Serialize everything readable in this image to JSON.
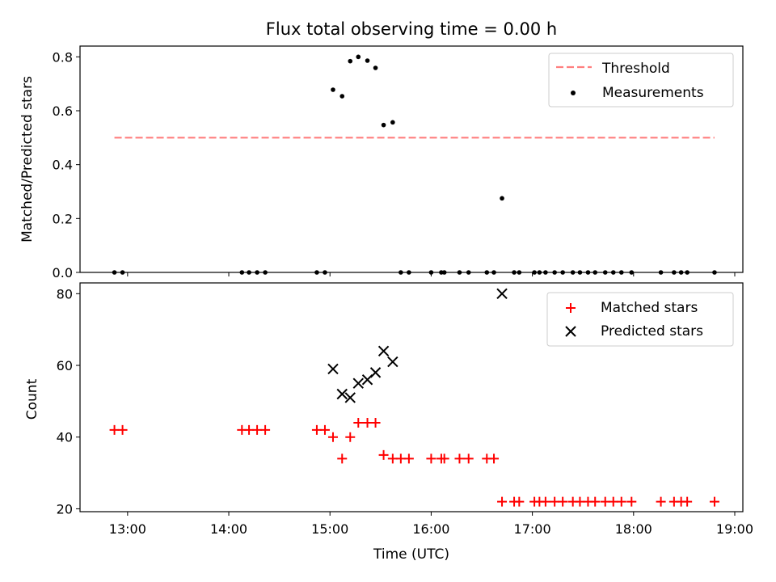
{
  "chart_data": [
    {
      "type": "scatter",
      "title": "Flux total observing time = 0.00 h",
      "xlabel": "",
      "ylabel": "Matched/Predicted stars",
      "xlim": [
        12.53,
        19.08
      ],
      "ylim": [
        0.0,
        0.84
      ],
      "yticks": [
        0.0,
        0.2,
        0.4,
        0.6,
        0.8
      ],
      "ytick_labels": [
        "0.0",
        "0.2",
        "0.4",
        "0.6",
        "0.8"
      ],
      "legend_position": "top-right",
      "threshold": {
        "name": "Threshold",
        "value": 0.5,
        "x_start": 12.87,
        "x_end": 18.8,
        "color": "#ff7f7f",
        "style": "dashed"
      },
      "series": [
        {
          "name": "Measurements",
          "marker": "dot",
          "color": "#000000",
          "x": [
            12.87,
            12.95,
            14.13,
            14.2,
            14.28,
            14.36,
            14.87,
            14.95,
            15.03,
            15.12,
            15.2,
            15.28,
            15.37,
            15.45,
            15.53,
            15.62,
            15.7,
            15.78,
            16.0,
            16.1,
            16.13,
            16.28,
            16.37,
            16.55,
            16.62,
            16.7,
            16.82,
            16.87,
            17.02,
            17.07,
            17.13,
            17.22,
            17.3,
            17.4,
            17.47,
            17.55,
            17.62,
            17.72,
            17.8,
            17.88,
            17.98,
            18.27,
            18.4,
            18.47,
            18.53,
            18.8
          ],
          "y": [
            0.0,
            0.0,
            0.0,
            0.0,
            0.0,
            0.0,
            0.0,
            0.0,
            0.678,
            0.654,
            0.784,
            0.8,
            0.786,
            0.759,
            0.547,
            0.557,
            0.0,
            0.0,
            0.0,
            0.0,
            0.0,
            0.0,
            0.0,
            0.0,
            0.0,
            0.275,
            0.0,
            0.0,
            0.0,
            0.0,
            0.0,
            0.0,
            0.0,
            0.0,
            0.0,
            0.0,
            0.0,
            0.0,
            0.0,
            0.0,
            0.0,
            0.0,
            0.0,
            0.0,
            0.0,
            0.0
          ]
        }
      ]
    },
    {
      "type": "scatter",
      "title": "",
      "xlabel": "Time (UTC)",
      "ylabel": "Count",
      "xlim": [
        12.53,
        19.08
      ],
      "ylim": [
        19.2,
        83.0
      ],
      "yticks": [
        20,
        40,
        60,
        80
      ],
      "ytick_labels": [
        "20",
        "40",
        "60",
        "80"
      ],
      "xticks": [
        13,
        14,
        15,
        16,
        17,
        18,
        19
      ],
      "xtick_labels": [
        "13:00",
        "14:00",
        "15:00",
        "16:00",
        "17:00",
        "18:00",
        "19:00"
      ],
      "legend_position": "top-right",
      "series": [
        {
          "name": "Matched stars",
          "marker": "plus",
          "color": "#ff0000",
          "x": [
            12.87,
            12.95,
            14.13,
            14.2,
            14.28,
            14.36,
            14.87,
            14.95,
            15.03,
            15.12,
            15.2,
            15.28,
            15.37,
            15.45,
            15.53,
            15.62,
            15.7,
            15.78,
            16.0,
            16.1,
            16.13,
            16.28,
            16.37,
            16.55,
            16.62,
            16.7,
            16.82,
            16.87,
            17.02,
            17.07,
            17.13,
            17.22,
            17.3,
            17.4,
            17.47,
            17.55,
            17.62,
            17.72,
            17.8,
            17.88,
            17.98,
            18.27,
            18.4,
            18.47,
            18.53,
            18.8
          ],
          "y": [
            42,
            42,
            42,
            42,
            42,
            42,
            42,
            42,
            40,
            34,
            40,
            44,
            44,
            44,
            35,
            34,
            34,
            34,
            34,
            34,
            34,
            34,
            34,
            34,
            34,
            22,
            22,
            22,
            22,
            22,
            22,
            22,
            22,
            22,
            22,
            22,
            22,
            22,
            22,
            22,
            22,
            22,
            22,
            22,
            22,
            22
          ]
        },
        {
          "name": "Predicted stars",
          "marker": "x",
          "color": "#000000",
          "x": [
            15.03,
            15.12,
            15.2,
            15.28,
            15.37,
            15.45,
            15.53,
            15.62,
            16.7
          ],
          "y": [
            59,
            52,
            51,
            55,
            56,
            58,
            64,
            61,
            80
          ]
        }
      ]
    }
  ]
}
